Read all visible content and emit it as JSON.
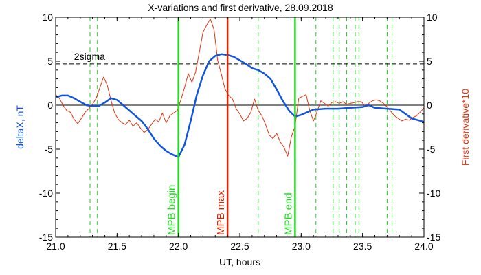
{
  "chart_data": {
    "type": "line",
    "title": "X-variations and first derivative, 28.09.2018",
    "xlabel": "UT, hours",
    "ylabel": "deltaX, nT",
    "y2label": "First derivative*10",
    "xlim": [
      21.0,
      24.0
    ],
    "ylim": [
      -15,
      10
    ],
    "y2lim": [
      -15,
      10
    ],
    "x_ticks": [
      "21.0",
      "21.5",
      "22.0",
      "22.5",
      "23.0",
      "23.5",
      "24.0"
    ],
    "y_ticks": [
      "-15",
      "-10",
      "-5",
      "0",
      "5",
      "10"
    ],
    "y2_ticks": [
      "-15",
      "-10",
      "-5",
      "0",
      "5",
      "10"
    ],
    "grid": false,
    "colors": {
      "deltaX": "#1155dd",
      "derivative": "#dd3311",
      "mpb_begin": "#22dd22",
      "mpb_max": "#dd2200",
      "mpb_end": "#22dd22",
      "dashed_green": "#22cc22",
      "axes": "#000000"
    },
    "series": [
      {
        "axis": "left",
        "x": [
          21.0,
          21.05,
          21.1,
          21.15,
          21.2,
          21.25,
          21.3,
          21.35,
          21.4,
          21.45,
          21.5,
          21.55,
          21.6,
          21.65,
          21.7,
          21.75,
          21.8,
          21.85,
          21.9,
          21.95,
          22.0,
          22.05,
          22.1,
          22.15,
          22.2,
          22.25,
          22.3,
          22.35,
          22.4,
          22.45,
          22.5,
          22.55,
          22.6,
          22.65,
          22.7,
          22.75,
          22.8,
          22.85,
          22.9,
          22.95,
          23.0,
          23.05,
          23.1,
          23.2,
          23.3,
          23.4,
          23.5,
          23.55,
          23.6,
          23.7,
          23.8,
          23.9,
          24.0
        ],
        "values": [
          0.9,
          1.1,
          1.1,
          0.8,
          0.4,
          0.0,
          -0.1,
          -0.1,
          0.3,
          0.8,
          0.6,
          0.0,
          -0.6,
          -1.2,
          -1.8,
          -2.7,
          -3.8,
          -4.6,
          -5.2,
          -5.6,
          -5.9,
          -4.5,
          -1.8,
          1.2,
          3.4,
          5.0,
          5.6,
          5.8,
          5.7,
          5.5,
          5.1,
          4.7,
          4.2,
          4.0,
          3.6,
          3.0,
          1.8,
          0.5,
          -0.6,
          -1.3,
          -1.1,
          -0.8,
          -0.5,
          -0.4,
          -0.4,
          -0.3,
          -0.2,
          -0.0,
          -0.3,
          -0.4,
          -0.5,
          -1.5,
          -1.9
        ]
      },
      {
        "axis": "right",
        "x": [
          21.0,
          21.03,
          21.06,
          21.09,
          21.12,
          21.15,
          21.18,
          21.21,
          21.24,
          21.27,
          21.3,
          21.33,
          21.36,
          21.39,
          21.42,
          21.45,
          21.48,
          21.51,
          21.54,
          21.57,
          21.6,
          21.63,
          21.66,
          21.69,
          21.72,
          21.75,
          21.78,
          21.81,
          21.84,
          21.87,
          21.9,
          21.93,
          21.96,
          21.99,
          22.02,
          22.05,
          22.08,
          22.11,
          22.14,
          22.17,
          22.2,
          22.23,
          22.26,
          22.29,
          22.32,
          22.35,
          22.38,
          22.41,
          22.44,
          22.47,
          22.5,
          22.53,
          22.56,
          22.59,
          22.62,
          22.65,
          22.68,
          22.71,
          22.74,
          22.77,
          22.8,
          22.83,
          22.86,
          22.89,
          22.92,
          22.95,
          22.98,
          23.01,
          23.04,
          23.07,
          23.1,
          23.13,
          23.16,
          23.19,
          23.22,
          23.25,
          23.28,
          23.31,
          23.34,
          23.37,
          23.4,
          23.43,
          23.46,
          23.49,
          23.52,
          23.55,
          23.58,
          23.61,
          23.64,
          23.67,
          23.7,
          23.73,
          23.76,
          23.79,
          23.82,
          23.85,
          23.88,
          23.91,
          23.94,
          23.97,
          24.0
        ],
        "values": [
          1.2,
          0.8,
          0.0,
          -0.6,
          -0.8,
          -1.6,
          -2.1,
          -1.5,
          -0.8,
          -0.4,
          0.1,
          0.8,
          2.0,
          3.2,
          2.3,
          0.6,
          -0.9,
          -1.6,
          -2.0,
          -2.2,
          -1.7,
          -2.4,
          -2.0,
          -2.6,
          -3.1,
          -2.8,
          -2.2,
          -1.6,
          -1.9,
          -0.9,
          -2.0,
          -1.2,
          -0.9,
          -0.6,
          0.6,
          2.0,
          3.6,
          2.6,
          3.8,
          6.0,
          8.3,
          9.1,
          9.8,
          8.6,
          5.1,
          3.5,
          1.8,
          1.1,
          0.7,
          -0.4,
          -1.0,
          -1.8,
          -1.5,
          -0.8,
          0.7,
          -0.6,
          -1.2,
          -2.2,
          -3.4,
          -3.8,
          -3.2,
          -4.2,
          -4.8,
          -5.8,
          -3.6,
          -2.4,
          0.8,
          1.0,
          1.2,
          -0.6,
          -1.8,
          -0.7,
          0.5,
          0.2,
          -0.1,
          0.3,
          0.4,
          0.2,
          0.4,
          0.1,
          0.2,
          0.3,
          0.4,
          0.4,
          -0.1,
          0.2,
          0.5,
          0.6,
          0.5,
          0.2,
          -0.2,
          -0.7,
          -1.2,
          -1.5,
          -1.8,
          -1.6,
          -1.7,
          -1.4,
          -1.2,
          -0.8,
          -0.3
        ]
      }
    ],
    "reference_lines": [
      {
        "kind": "horizontal",
        "axis": "left",
        "y": 0,
        "style": "solid"
      },
      {
        "kind": "horizontal",
        "axis": "left",
        "y": 4.7,
        "style": "dashed",
        "label": "2sigma"
      }
    ],
    "vertical_markers": [
      {
        "x": 22.0,
        "style": "solid",
        "color_key": "mpb_begin",
        "label": "MPB begin"
      },
      {
        "x": 22.4,
        "style": "solid",
        "color_key": "mpb_max",
        "label": "MPB max"
      },
      {
        "x": 22.95,
        "style": "solid",
        "color_key": "mpb_end",
        "label": "MPB end"
      }
    ],
    "dashed_verticals_x": [
      21.28,
      21.34,
      22.65,
      23.12,
      23.26,
      23.31,
      23.37,
      23.44,
      23.47,
      23.7,
      23.74
    ]
  }
}
